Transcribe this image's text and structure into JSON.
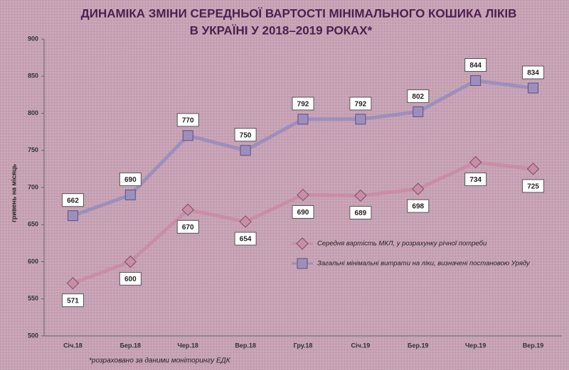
{
  "chart_data": {
    "type": "line",
    "title": [
      "ДИНАМІКА ЗМІНИ СЕРЕДНЬОЇ ВАРТОСТІ МІНІМАЛЬНОГО  КОШИКА ЛІКІВ",
      "В УКРАЇНІ У 2018–2019   РОКАХ*"
    ],
    "y_label": "гривень на місяць",
    "footnote": "*розраховано за даними моніторингу ЕДК",
    "categories": [
      "Січ.18",
      "Бер.18",
      "Чер.18",
      "Вер.18",
      "Гру.18",
      "Січ.19",
      "Бер.19",
      "Чер.19",
      "Вер.19"
    ],
    "series": [
      {
        "name": "Середня вартість  МКЛ, у розрахунку річної потреби",
        "color": "#c98ea6",
        "marker": "diamond",
        "values": [
          571,
          600,
          670,
          654,
          690,
          689,
          698,
          734,
          725
        ]
      },
      {
        "name": "Загальні  мінімальні  витрати  на ліки, визначені   постановою  Уряду",
        "color": "#9d8fbd",
        "marker": "square",
        "values": [
          662,
          690,
          770,
          750,
          792,
          792,
          802,
          844,
          834
        ]
      }
    ],
    "ylim": [
      500,
      900
    ],
    "yticks": [
      500,
      550,
      600,
      650,
      700,
      750,
      800,
      850,
      900
    ],
    "grid": false
  }
}
